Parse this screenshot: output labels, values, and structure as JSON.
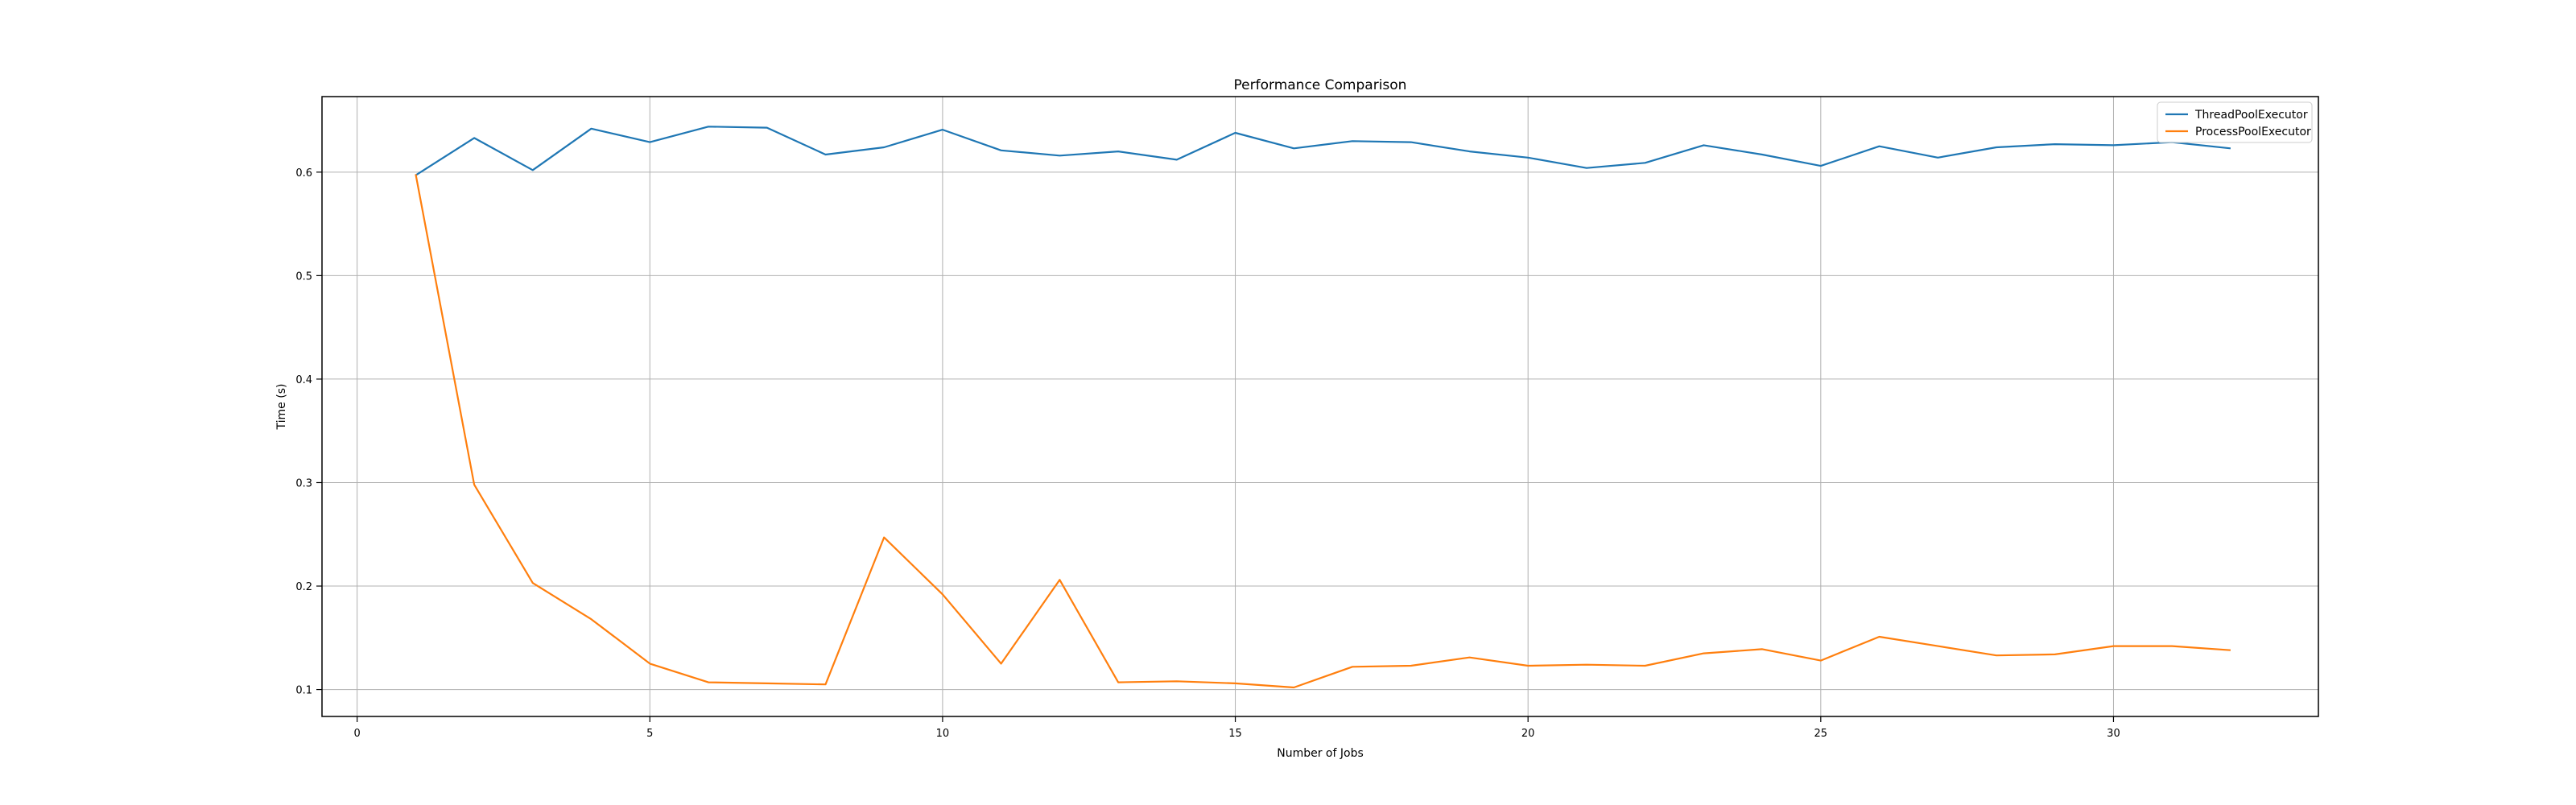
{
  "chart_data": {
    "type": "line",
    "title": "Performance Comparison",
    "xlabel": "Number of Jobs",
    "ylabel": "Time (s)",
    "xlim": [
      -0.6,
      33.5
    ],
    "ylim": [
      0.074,
      0.673
    ],
    "xticks": [
      0,
      5,
      10,
      15,
      20,
      25,
      30
    ],
    "yticks": [
      0.1,
      0.2,
      0.3,
      0.4,
      0.5,
      0.6
    ],
    "grid": true,
    "legend_position": "top-right",
    "x": [
      1,
      2,
      3,
      4,
      5,
      6,
      7,
      8,
      9,
      10,
      11,
      12,
      13,
      14,
      15,
      16,
      17,
      18,
      19,
      20,
      21,
      22,
      23,
      24,
      25,
      26,
      27,
      28,
      29,
      30,
      31,
      32
    ],
    "series": [
      {
        "name": "ThreadPoolExecutor",
        "color": "#1f77b4",
        "values": [
          0.597,
          0.633,
          0.602,
          0.642,
          0.629,
          0.644,
          0.643,
          0.617,
          0.624,
          0.641,
          0.621,
          0.616,
          0.62,
          0.612,
          0.638,
          0.623,
          0.63,
          0.629,
          0.62,
          0.614,
          0.604,
          0.609,
          0.626,
          0.617,
          0.606,
          0.625,
          0.614,
          0.624,
          0.627,
          0.626,
          0.629,
          0.623
        ]
      },
      {
        "name": "ProcessPoolExecutor",
        "color": "#ff7f0e",
        "values": [
          0.598,
          0.298,
          0.203,
          0.168,
          0.125,
          0.107,
          0.106,
          0.105,
          0.247,
          0.192,
          0.125,
          0.206,
          0.107,
          0.108,
          0.106,
          0.102,
          0.122,
          0.123,
          0.131,
          0.123,
          0.124,
          0.123,
          0.135,
          0.139,
          0.128,
          0.151,
          0.142,
          0.133,
          0.134,
          0.142,
          0.142,
          0.138
        ]
      }
    ]
  }
}
